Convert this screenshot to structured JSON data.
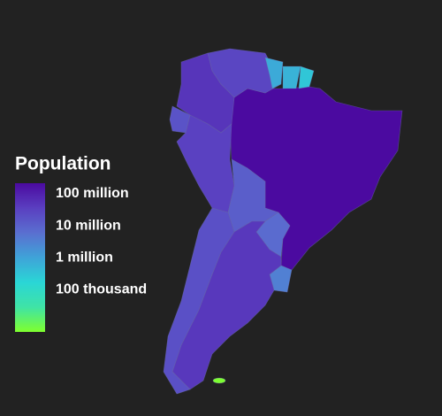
{
  "map": {
    "type": "choropleth",
    "scale": "log",
    "legend": {
      "title": "Population",
      "lim": [
        4700,
        215000000
      ],
      "colors": [
        "#7fff2e",
        "#3fe3a6",
        "#2ad6d6",
        "#3fa3d8",
        "#5a6fd0",
        "#5a3fc0",
        "#4b0aa0"
      ],
      "ticks": [
        {
          "value": 100000000,
          "label": "100 million"
        },
        {
          "value": 10000000,
          "label": "10 million"
        },
        {
          "value": 1000000,
          "label": "1 million"
        },
        {
          "value": 100000,
          "label": "100 thousand"
        }
      ]
    },
    "regions": [
      {
        "value": 212000000
      },
      {
        "value": 50000000
      },
      {
        "value": 28000000
      },
      {
        "value": 33000000
      },
      {
        "value": 17000000
      },
      {
        "value": 11500000
      },
      {
        "value": 7000000
      },
      {
        "value": 3400000
      },
      {
        "value": 45000000
      },
      {
        "value": 19000000
      },
      {
        "value": 780000
      },
      {
        "value": 580000
      },
      {
        "value": 290000
      },
      {
        "value": 5000
      }
    ]
  }
}
